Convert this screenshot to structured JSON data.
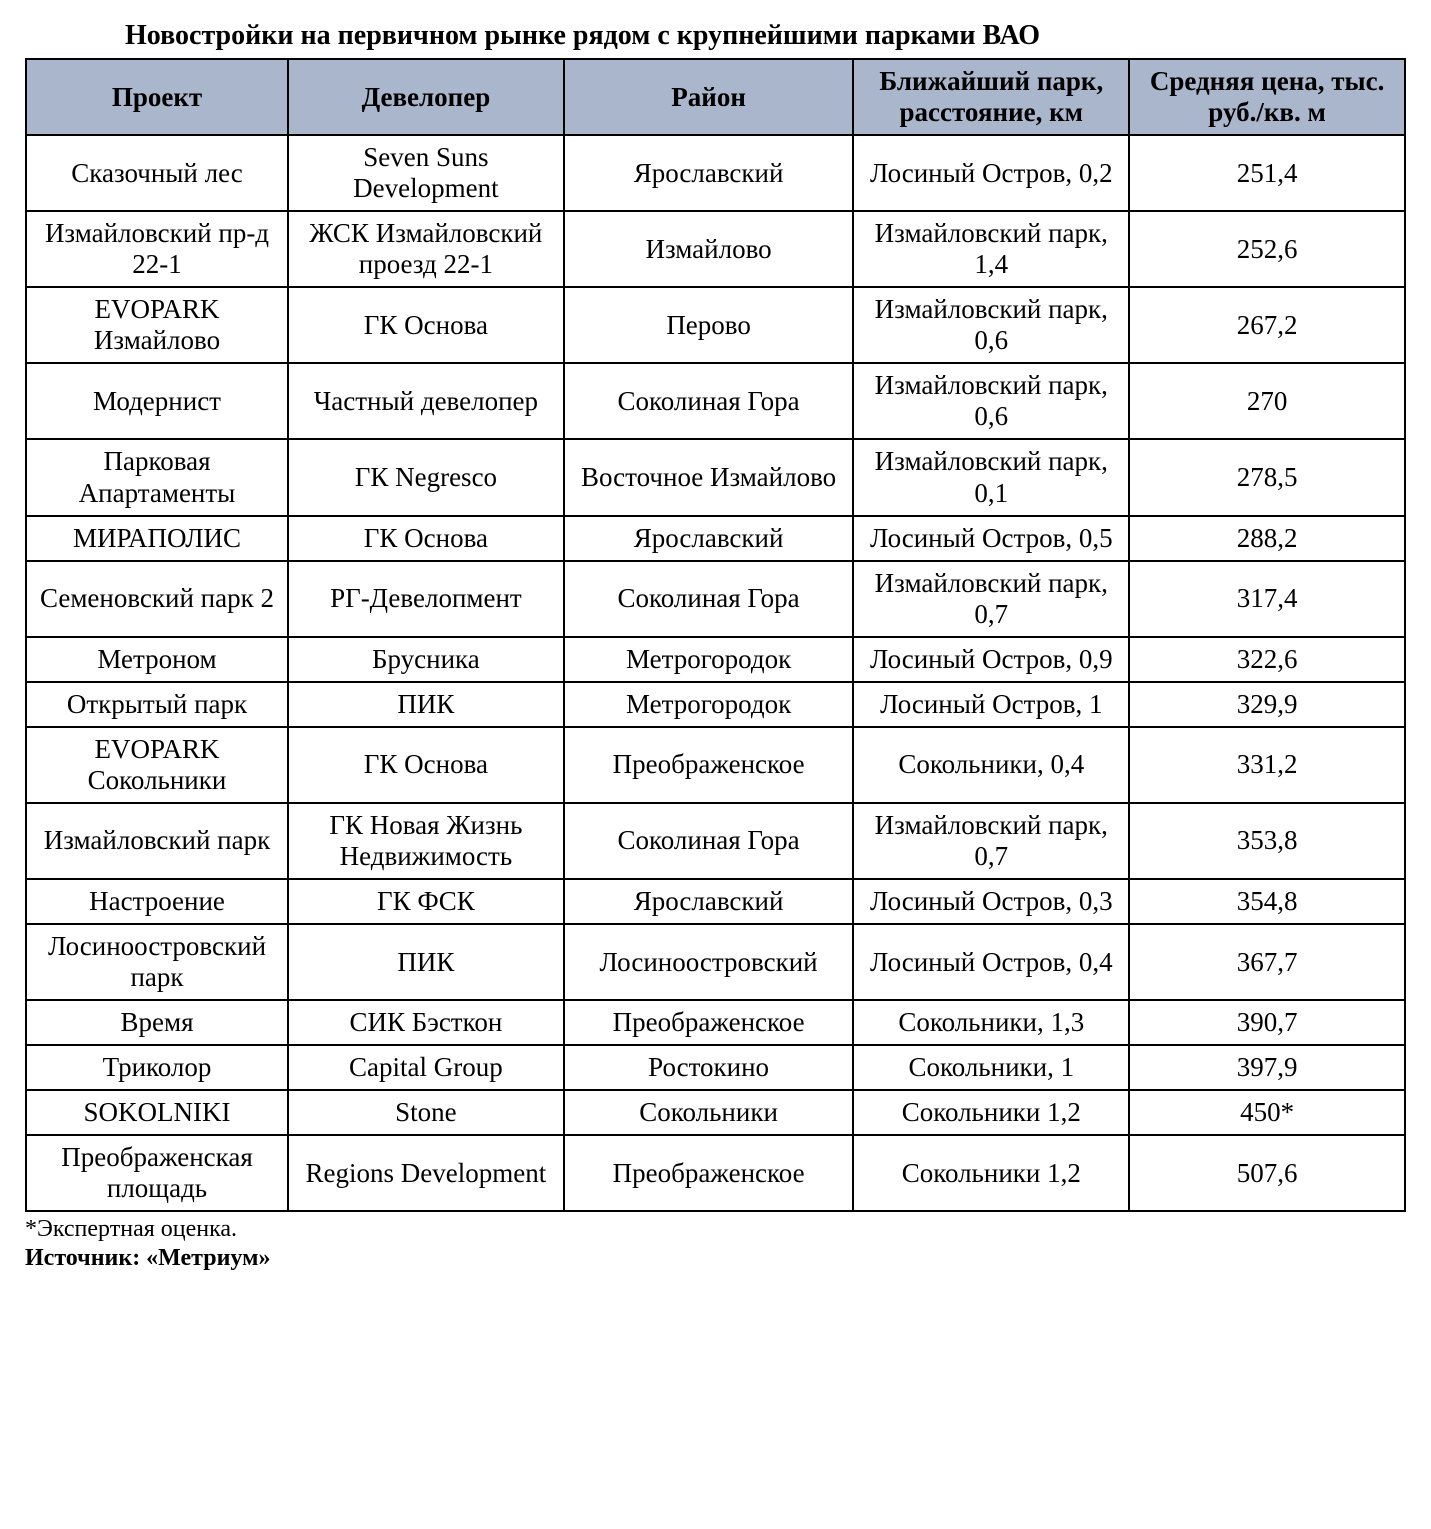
{
  "title": "Новостройки на первичном рынке рядом с крупнейшими парками ВАО",
  "header_bg_color": "#aab6cb",
  "border_color": "#000000",
  "text_color": "#000000",
  "background_color": "#ffffff",
  "font_family": "Times New Roman",
  "title_fontsize": 28,
  "cell_fontsize": 27,
  "footnote_fontsize": 24,
  "column_widths_percent": [
    19,
    20,
    21,
    20,
    20
  ],
  "columns": [
    "Проект",
    "Девелопер",
    "Район",
    "Ближайший парк, расстояние, км",
    "Средняя цена, тыс. руб./кв. м"
  ],
  "rows": [
    [
      "Сказочный лес",
      "Seven Suns Development",
      "Ярославский",
      "Лосиный Остров, 0,2",
      "251,4"
    ],
    [
      "Измайловский пр-д 22-1",
      "ЖСК Измайловский проезд 22-1",
      "Измайлово",
      "Измайловский парк, 1,4",
      "252,6"
    ],
    [
      "EVOPARK Измайлово",
      "ГК Основа",
      "Перово",
      "Измайловский парк, 0,6",
      "267,2"
    ],
    [
      "Модернист",
      "Частный девелопер",
      "Соколиная Гора",
      "Измайловский парк, 0,6",
      "270"
    ],
    [
      "Парковая Апартаменты",
      "ГК Negresco",
      "Восточное Измайлово",
      "Измайловский парк, 0,1",
      "278,5"
    ],
    [
      "МИРАПОЛИС",
      "ГК Основа",
      "Ярославский",
      "Лосиный Остров, 0,5",
      "288,2"
    ],
    [
      "Семеновский парк 2",
      "РГ-Девелопмент",
      "Соколиная Гора",
      "Измайловский парк, 0,7",
      "317,4"
    ],
    [
      "Метроном",
      "Брусника",
      "Метрогородок",
      "Лосиный Остров, 0,9",
      "322,6"
    ],
    [
      "Открытый парк",
      "ПИК",
      "Метрогородок",
      "Лосиный Остров, 1",
      "329,9"
    ],
    [
      "EVOPARK Сокольники",
      "ГК Основа",
      "Преображенское",
      "Сокольники, 0,4",
      "331,2"
    ],
    [
      "Измайловский парк",
      "ГК Новая Жизнь Недвижимость",
      "Соколиная Гора",
      "Измайловский парк, 0,7",
      "353,8"
    ],
    [
      "Настроение",
      "ГК ФСК",
      "Ярославский",
      "Лосиный Остров, 0,3",
      "354,8"
    ],
    [
      "Лосиноостровский парк",
      "ПИК",
      "Лосиноостровский",
      "Лосиный Остров, 0,4",
      "367,7"
    ],
    [
      "Время",
      "СИК Бэсткон",
      "Преображенское",
      "Сокольники, 1,3",
      "390,7"
    ],
    [
      "Триколор",
      "Capital Group",
      "Ростокино",
      "Сокольники, 1",
      "397,9"
    ],
    [
      "SOKOLNIKI",
      "Stone",
      "Сокольники",
      "Сокольники 1,2",
      "450*"
    ],
    [
      "Преображенская площадь",
      "Regions Development",
      "Преображенское",
      "Сокольники 1,2",
      "507,6"
    ]
  ],
  "footnote": "*Экспертная оценка.",
  "source_label": "Источник: «Метриум»"
}
